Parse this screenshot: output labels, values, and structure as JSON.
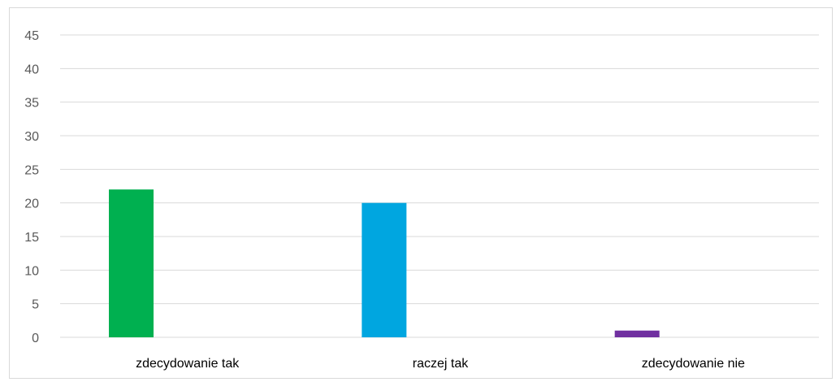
{
  "chart_data": {
    "type": "bar",
    "categories": [
      "zdecydowanie tak",
      "raczej tak",
      "zdecydowanie nie"
    ],
    "values": [
      22,
      20,
      1
    ],
    "colors": [
      "#00b050",
      "#00a6e0",
      "#7030a0"
    ],
    "title": "",
    "xlabel": "",
    "ylabel": "",
    "ylim": [
      0,
      45
    ],
    "yticks": [
      0,
      5,
      10,
      15,
      20,
      25,
      30,
      35,
      40,
      45
    ],
    "grid": true,
    "legend": "none"
  }
}
